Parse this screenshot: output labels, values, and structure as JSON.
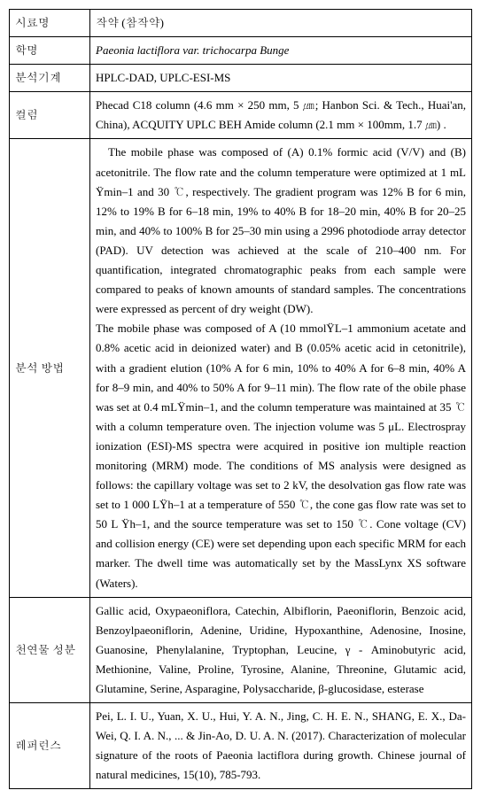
{
  "row1": {
    "label": "시료명",
    "value": "작약 (참작약)"
  },
  "row2": {
    "label": "학명",
    "value": "Paeonia lactiflora var. trichocarpa Bunge"
  },
  "row3": {
    "label": "분석기계",
    "value": "HPLC-DAD, UPLC-ESI-MS"
  },
  "row4": {
    "label": "컬럼",
    "value": "  Phecad C18 column (4.6 mm × 250 mm, 5 ㎛; Hanbon Sci. & Tech., Huai'an, China), ACQUITY UPLC BEH Amide column (2.1 mm × 100mm, 1.7 ㎛) ."
  },
  "row5": {
    "label": "분석 방법",
    "p1": "The mobile phase was composed of (A) 0.1% formic acid (V/V) and (B) acetonitrile. The flow rate and the column temperature were optimized at 1 mL Ÿmin–1 and 30 ℃, respectively. The gradient program was 12% B for 6 min, 12% to 19% B for 6–18 min, 19% to 40% B for 18–20 min, 40% B for 20–25 min, and 40% to 100% B for 25–30 min using a 2996 photodiode array detector (PAD). UV detection was achieved at the scale of 210–400 nm. For quantification, integrated chromatographic peaks from each sample were compared to peaks of known amounts of standard samples. The concentrations were expressed as percent of dry weight (DW).",
    "p2": "The mobile phase was composed of A (10 mmolŸL–1 ammonium acetate and 0.8% acetic acid in deionized water) and B (0.05% acetic acid in cetonitrile), with a gradient elution (10% A for 6 min, 10% to 40% A for 6–8 min, 40% A for 8–9 min, and 40% to 50% A for 9–11 min). The flow rate of the obile phase was set at 0.4 mLŸmin–1, and the column temperature was maintained at 35 ℃ with a column temperature oven. The injection volume was 5 μL. Electrospray ionization (ESI)-MS spectra were acquired in positive ion multiple reaction monitoring (MRM) mode. The conditions of MS analysis were designed as follows: the capillary voltage was set to 2 kV, the desolvation gas flow rate was set to 1 000 LŸh–1 at a temperature of 550 ℃, the cone gas flow rate was set to 50 L Ÿh–1, and the source temperature was set to 150 ℃. Cone voltage (CV) and collision energy (CE) were set depending upon each specific MRM for each marker. The dwell time was automatically set by the MassLynx XS software (Waters)."
  },
  "row6": {
    "label": "천연물 성분",
    "value": "  Gallic acid, Oxypaeoniflora, Catechin, Albiflorin, Paeoniflorin, Benzoic acid, Benzoylpaeoniflorin, Adenine, Uridine, Hypoxanthine,  Adenosine, Inosine, Guanosine, Phenylalanine, Tryptophan, Leucine, γ - Aminobutyric acid, Methionine, Valine, Proline, Tyrosine, Alanine, Threonine, Glutamic acid, Glutamine, Serine, Asparagine, Polysaccharide, β-glucosidase, esterase"
  },
  "row7": {
    "label": "레퍼런스",
    "value": "Pei, L. I. U., Yuan, X. U., Hui, Y. A. N., Jing, C. H. E. N., SHANG, E. X., Da-Wei, Q. I. A. N., ... & Jin-Ao, D. U. A. N. (2017). Characterization of molecular signature of the roots of Paeonia lactiflora during growth. Chinese journal of natural medicines, 15(10), 785-793."
  }
}
